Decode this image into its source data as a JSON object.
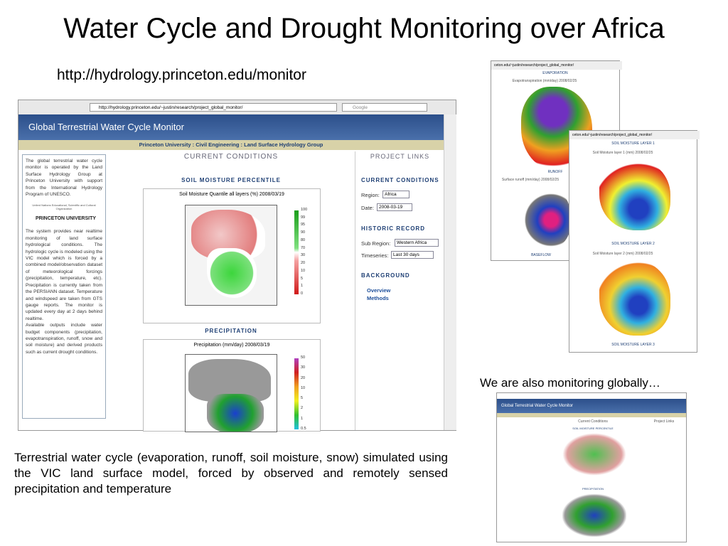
{
  "slide": {
    "title": "Water Cycle and Drought Monitoring over Africa",
    "url": "http://hydrology.princeton.edu/monitor",
    "global_caption": "We are also monitoring globally…",
    "description": "Terrestrial water cycle (evaporation, runoff, soil moisture, snow) simulated using the VIC land surface model, forced by observed and remotely sensed precipitation and temperature"
  },
  "browser": {
    "address": "http://hydrology.princeton.edu/~justin/research/project_global_monitor/",
    "search": "Google",
    "header": "Global Terrestrial Water Cycle Monitor",
    "subheader": "Princeton University : Civil Engineering : Land Surface Hydrology Group",
    "left": {
      "intro": "The global terrestrial water cycle monitor is operated by the Land Surface Hydrology Group at Princeton University with support from the International Hydrology Program of UNESCO.",
      "unesco": "United Nations Educational, Scientific and Cultural Organization",
      "princeton": "PRINCETON UNIVERSITY",
      "system": "The system provides near realtime monitoring of land surface hydrological conditions. The hydrologic cycle is modeled using the VIC model which is forced by a combined model/observation dataset of meteorological forcings (precipitation, temperature, etc). Precipitation is currently taken from the PERSIANN dataset. Temperature and windspeed are taken from GTS gauge reports. The monitor is updated every day at 2 days behind realtime.",
      "outputs": "Available outputs include water budget components (precipitation, evapotranspiration, runoff, snow and soil moisture) and derived products such as current drought conditions."
    },
    "center": {
      "heading": "CURRENT CONDITIONS",
      "map1_section": "SOIL MOISTURE PERCENTILE",
      "map1_title": "Soil Moisture Quantile all layers (%) 2008/03/19",
      "map1_legend": [
        "100",
        "99",
        "95",
        "90",
        "80",
        "70",
        "30",
        "20",
        "10",
        "5",
        "1",
        "0"
      ],
      "map2_section": "PRECIPITATION",
      "map2_title": "Precipitation (mm/day) 2008/03/19",
      "map2_legend": [
        "50",
        "30",
        "20",
        "10",
        "5",
        "2",
        "1",
        "0.5"
      ]
    },
    "right": {
      "heading": "PROJECT LINKS",
      "current": "CURRENT CONDITIONS",
      "region_label": "Region:",
      "region": "Africa",
      "date_label": "Date:",
      "date": "2008-03-19",
      "historic": "HISTORIC RECORD",
      "subregion_label": "Sub Region:",
      "subregion": "Western Africa",
      "timeseries_label": "Timeseries:",
      "timeseries": "Last 30 days",
      "background": "BACKGROUND",
      "links": [
        "Overview",
        "Methods"
      ]
    }
  },
  "thumb_fluxes": {
    "address": "ceton.edu/~justin/research/project_global_monitor/",
    "panels": [
      "EVAPORATION",
      "RUNOFF",
      "BASEFLOW"
    ],
    "map_titles": [
      "Evapotranspiration (mm/day) 2008/02/25",
      "Surface runoff (mm/day) 2008/02/25"
    ]
  },
  "thumb_soil": {
    "address": "ceton.edu/~justin/research/project_global_monitor/",
    "panels": [
      "SOIL MOISTURE LAYER 1",
      "SOIL MOISTURE LAYER 2",
      "SOIL MOISTURE LAYER 3"
    ],
    "map_titles": [
      "Soil Moisture layer 1 (mm) 2008/02/25",
      "Soil Moisture layer 2 (mm) 2008/02/25"
    ]
  },
  "thumb_global": {
    "header": "Global Terrestrial Water Cycle Monitor",
    "current": "Current Conditions",
    "links": "Project Links",
    "map1_section": "SOIL MOISTURE PERCENTILE",
    "map2_section": "PRECIPITATION"
  }
}
